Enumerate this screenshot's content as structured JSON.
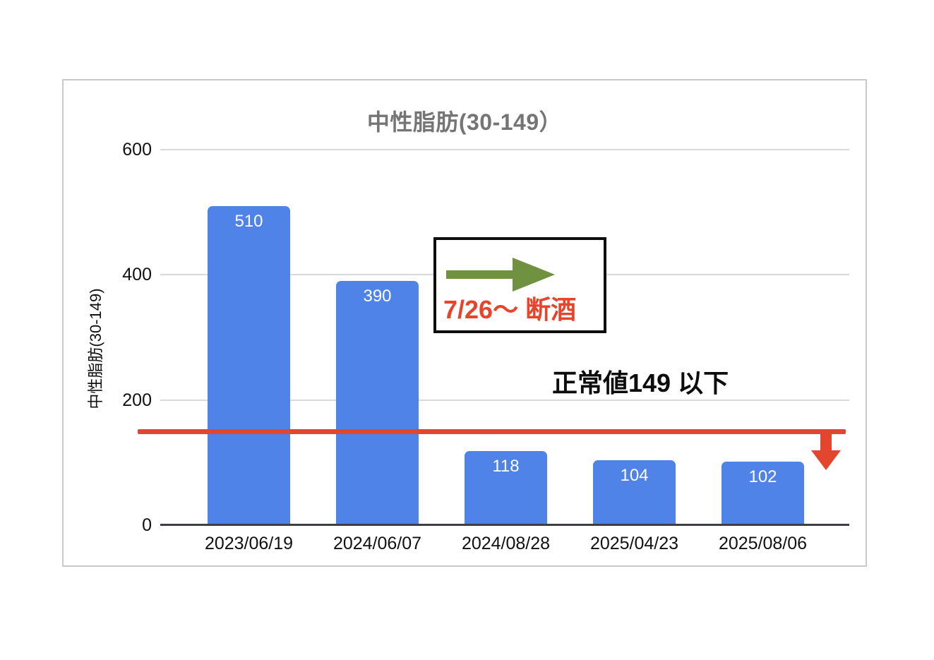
{
  "chart_data": {
    "type": "bar",
    "title": "中性脂肪(30-149）",
    "ylabel": "中性脂肪(30-149)",
    "categories": [
      "2023/06/19",
      "2024/06/07",
      "2024/08/28",
      "2025/04/23",
      "2025/08/06"
    ],
    "values": [
      510,
      390,
      118,
      104,
      102
    ],
    "ylim": [
      0,
      600
    ],
    "yticks": [
      600,
      400,
      200,
      0
    ],
    "grid": "horizontal",
    "legend": "none",
    "bar_color": "#5083e8",
    "bar_label_color": "#ffffff",
    "threshold_line": {
      "value": 149,
      "color": "#e2462e"
    }
  },
  "annotations": {
    "abstinence_note": {
      "label": "7/26〜 断酒",
      "text_color": "#e8432b",
      "arrow_color": "#6f9140"
    },
    "normal_value_note": "正常値149 以下"
  },
  "colors": {
    "title": "#757575",
    "grid": "#d9d9d9",
    "axis": "#3c4043",
    "card_border": "#c9c9c9"
  }
}
